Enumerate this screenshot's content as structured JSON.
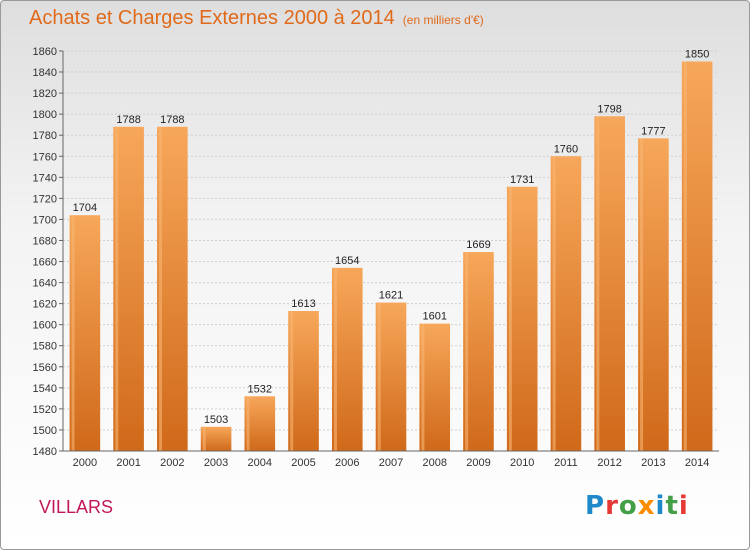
{
  "header": {
    "title": "Achats et Charges Externes 2000 à 2014",
    "subtitle": "(en milliers d'€)"
  },
  "footer": {
    "town": "VILLARS",
    "logo_letters": [
      {
        "char": "P",
        "color": "#1e88c8"
      },
      {
        "char": "r",
        "color": "#e53935"
      },
      {
        "char": "o",
        "color": "#43a047"
      },
      {
        "char": "x",
        "color": "#fb8c00"
      },
      {
        "char": "i",
        "color": "#1e88c8"
      },
      {
        "char": "t",
        "color": "#43a047"
      },
      {
        "char": "i",
        "color": "#e53935"
      }
    ]
  },
  "chart_data": {
    "type": "bar",
    "title": "Achats et Charges Externes 2000 à 2014",
    "subtitle": "(en milliers d'€)",
    "xlabel": "",
    "ylabel": "",
    "categories": [
      "2000",
      "2001",
      "2002",
      "2003",
      "2004",
      "2005",
      "2006",
      "2007",
      "2008",
      "2009",
      "2010",
      "2011",
      "2012",
      "2013",
      "2014"
    ],
    "values": [
      1704,
      1788,
      1788,
      1503,
      1532,
      1613,
      1654,
      1621,
      1601,
      1669,
      1731,
      1760,
      1798,
      1777,
      1850
    ],
    "ylim": [
      1480,
      1860
    ],
    "ytick_step": 20,
    "grid": true,
    "bar_color_top": "#f7a75a",
    "bar_color_bottom": "#d0691a",
    "bar_highlight": "#f9b673"
  }
}
